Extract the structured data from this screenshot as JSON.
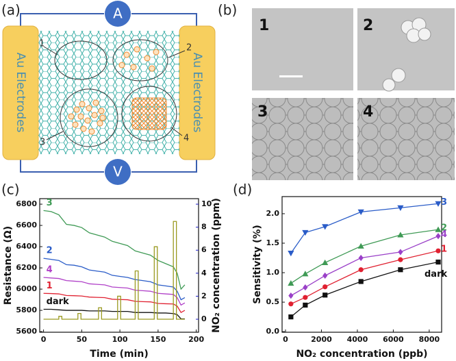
{
  "panel_labels": [
    "(a)",
    "(b)",
    "(c)",
    "(d)"
  ],
  "diagram": {
    "ammeter": "A",
    "voltmeter": "V",
    "electrodes": [
      "Au Electrodes",
      "Au Electrodes"
    ],
    "regions": [
      "1",
      "2",
      "3",
      "4"
    ]
  },
  "micrographs": [
    "1",
    "2",
    "3",
    "4"
  ],
  "chart_data": [
    {
      "type": "line",
      "xlabel": "Time (min)",
      "ylabel": "Resistance (Ω)",
      "y2label": "NO₂ concentration (ppm)",
      "y2_color": "#1c1cc8",
      "xlim": [
        -5,
        203
      ],
      "xticks": [
        0,
        50,
        100,
        150,
        200
      ],
      "ylim": [
        5594,
        6852
      ],
      "yticks": [
        5600,
        5800,
        6000,
        6200,
        6400,
        6600,
        6800
      ],
      "y2lim": [
        -1.13,
        10.48
      ],
      "y2ticks": [
        0,
        2,
        4,
        6,
        8,
        10
      ],
      "x": [
        0,
        10,
        20,
        30,
        40,
        50,
        60,
        70,
        80,
        90,
        100,
        110,
        120,
        130,
        140,
        150,
        160,
        170,
        175,
        180,
        185
      ],
      "series": [
        {
          "name": "3",
          "color": "#3f9a55",
          "values": [
            6740,
            6730,
            6700,
            6610,
            6600,
            6580,
            6530,
            6510,
            6490,
            6450,
            6430,
            6410,
            6360,
            6340,
            6320,
            6270,
            6240,
            6210,
            6150,
            6000,
            6040
          ]
        },
        {
          "name": "2",
          "color": "#2a5cc8",
          "values": [
            6290,
            6280,
            6270,
            6230,
            6225,
            6210,
            6180,
            6170,
            6160,
            6130,
            6120,
            6110,
            6090,
            6080,
            6070,
            6040,
            6030,
            6020,
            5980,
            5900,
            5920
          ]
        },
        {
          "name": "4",
          "color": "#b040c8",
          "values": [
            6110,
            6105,
            6100,
            6080,
            6075,
            6070,
            6050,
            6045,
            6040,
            6020,
            6015,
            6010,
            5990,
            5985,
            5980,
            5960,
            5955,
            5950,
            5920,
            5850,
            5870
          ]
        },
        {
          "name": "1",
          "color": "#e02030",
          "values": [
            5960,
            5958,
            5955,
            5940,
            5938,
            5935,
            5925,
            5922,
            5920,
            5905,
            5902,
            5900,
            5885,
            5882,
            5880,
            5865,
            5862,
            5860,
            5840,
            5780,
            5800
          ]
        },
        {
          "name": "dark",
          "color": "#111111",
          "values": [
            5810,
            5810,
            5805,
            5800,
            5800,
            5800,
            5795,
            5795,
            5795,
            5790,
            5790,
            5790,
            5780,
            5780,
            5780,
            5775,
            5775,
            5770,
            5760,
            5720,
            5720
          ]
        },
        {
          "axis": "y2",
          "color": "#9a9a20",
          "x": [
            0,
            20,
            20,
            24,
            24,
            45,
            45,
            49,
            49,
            72,
            72,
            76,
            76,
            97,
            97,
            101,
            101,
            120,
            120,
            124,
            124,
            145,
            145,
            149,
            149,
            170,
            170,
            174,
            174,
            185
          ],
          "values": [
            0,
            0,
            0.25,
            0.25,
            0,
            0,
            0.5,
            0.5,
            0,
            0,
            1,
            1,
            0,
            0,
            2,
            2,
            0,
            0,
            4.2,
            4.2,
            0,
            0,
            6.3,
            6.3,
            0,
            0,
            8.5,
            8.5,
            0,
            0
          ]
        }
      ]
    },
    {
      "type": "line",
      "xlabel": "NO₂ concentration (ppb)",
      "ylabel": "Sensitivity (%)",
      "xlim": [
        -190,
        8690
      ],
      "xticks": [
        0,
        2000,
        4000,
        6000,
        8000
      ],
      "ylim": [
        -0.01,
        2.29
      ],
      "yticks": [
        {
          "value": 0,
          "label": "0.0"
        },
        {
          "value": 0.5,
          "label": "0.5"
        },
        {
          "value": 1,
          "label": "1.0"
        },
        {
          "value": 1.5,
          "label": "1.5"
        },
        {
          "value": 2,
          "label": "2.0"
        }
      ],
      "x": [
        300,
        1100,
        2200,
        4200,
        6400,
        8500
      ],
      "series": [
        {
          "name": "3",
          "color": "#2a5cc8",
          "marker": "triangle-down",
          "values": [
            1.33,
            1.68,
            1.78,
            2.03,
            2.1,
            2.17
          ]
        },
        {
          "name": "2",
          "color": "#3f9a55",
          "marker": "triangle-up",
          "values": [
            0.82,
            0.98,
            1.17,
            1.45,
            1.64,
            1.73
          ]
        },
        {
          "name": "4",
          "color": "#9a40c8",
          "marker": "diamond",
          "values": [
            0.61,
            0.75,
            0.95,
            1.25,
            1.35,
            1.62
          ]
        },
        {
          "name": "1",
          "color": "#e02030",
          "marker": "circle",
          "values": [
            0.47,
            0.58,
            0.76,
            1.05,
            1.22,
            1.37
          ]
        },
        {
          "name": "dark",
          "color": "#111111",
          "marker": "square",
          "values": [
            0.25,
            0.45,
            0.62,
            0.85,
            1.05,
            1.18
          ]
        }
      ]
    }
  ]
}
